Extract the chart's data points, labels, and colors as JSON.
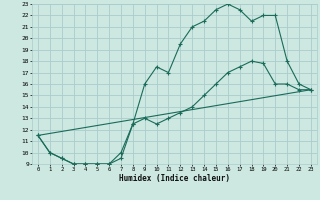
{
  "title": "",
  "xlabel": "Humidex (Indice chaleur)",
  "ylabel": "",
  "bg_color": "#cce8e0",
  "grid_color": "#aacccc",
  "line_color": "#1a6b5a",
  "xlim": [
    -0.5,
    23.5
  ],
  "ylim": [
    9,
    23
  ],
  "xticks": [
    0,
    1,
    2,
    3,
    4,
    5,
    6,
    7,
    8,
    9,
    10,
    11,
    12,
    13,
    14,
    15,
    16,
    17,
    18,
    19,
    20,
    21,
    22,
    23
  ],
  "yticks": [
    9,
    10,
    11,
    12,
    13,
    14,
    15,
    16,
    17,
    18,
    19,
    20,
    21,
    22,
    23
  ],
  "series1": {
    "x": [
      0,
      1,
      2,
      3,
      4,
      5,
      6,
      7,
      8,
      9,
      10,
      11,
      12,
      13,
      14,
      15,
      16,
      17,
      18,
      19,
      20,
      21,
      22,
      23
    ],
    "y": [
      11.5,
      10.0,
      9.5,
      9.0,
      9.0,
      9.0,
      9.0,
      10.0,
      12.5,
      16.0,
      17.5,
      17.0,
      19.5,
      21.0,
      21.5,
      22.5,
      23.0,
      22.5,
      21.5,
      22.0,
      22.0,
      18.0,
      16.0,
      15.5
    ]
  },
  "series2": {
    "x": [
      0,
      1,
      2,
      3,
      4,
      5,
      6,
      7,
      8,
      9,
      10,
      11,
      12,
      13,
      14,
      15,
      16,
      17,
      18,
      19,
      20,
      21,
      22,
      23
    ],
    "y": [
      11.5,
      10.0,
      9.5,
      9.0,
      9.0,
      9.0,
      9.0,
      9.5,
      12.5,
      13.0,
      12.5,
      13.0,
      13.5,
      14.0,
      15.0,
      16.0,
      17.0,
      17.5,
      18.0,
      17.8,
      16.0,
      16.0,
      15.5,
      15.5
    ]
  },
  "series3": {
    "x": [
      0,
      23
    ],
    "y": [
      11.5,
      15.5
    ]
  }
}
